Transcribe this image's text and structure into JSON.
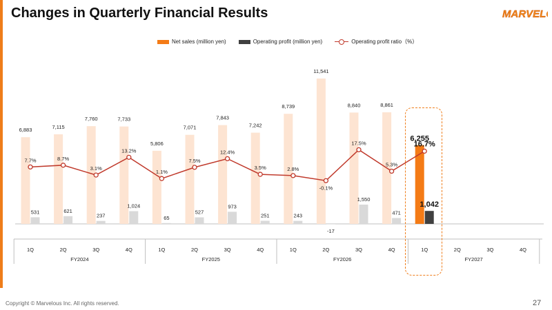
{
  "page": {
    "title": "Changes in Quarterly Financial Results",
    "logo_text": "MARVELOUS",
    "footer": "Copyright © Marvelous Inc. All rights reserved.",
    "page_number": "27"
  },
  "legend": {
    "net_sales": "Net sales (million yen)",
    "operating_profit": "Operating profit (million yen)",
    "ratio": "Operating profit ratio（%）"
  },
  "colors": {
    "accent": "#ef7d1a",
    "net_sales_past": "#fde4d2",
    "net_sales_current": "#f47b16",
    "op_profit_past": "#d9d9d9",
    "op_profit_current": "#404040",
    "ratio_line": "#c0392b"
  },
  "chart_data": {
    "type": "bar",
    "title": "Changes in Quarterly Financial Results",
    "categories": [
      "1Q",
      "2Q",
      "3Q",
      "4Q",
      "1Q",
      "2Q",
      "3Q",
      "4Q",
      "1Q",
      "2Q",
      "3Q",
      "4Q",
      "1Q",
      "2Q",
      "3Q",
      "4Q"
    ],
    "groups": [
      {
        "label": "FY2024",
        "quarters": 4
      },
      {
        "label": "FY2025",
        "quarters": 4
      },
      {
        "label": "FY2026",
        "quarters": 4
      },
      {
        "label": "FY2027",
        "quarters": 4
      }
    ],
    "series": [
      {
        "name": "Net sales (million yen)",
        "kind": "bar",
        "values": [
          6883,
          7115,
          7760,
          7733,
          5806,
          7071,
          7843,
          7242,
          8739,
          11541,
          8840,
          8861,
          6255,
          null,
          null,
          null
        ],
        "labels": [
          "6,883",
          "7,115",
          "7,760",
          "7,733",
          "5,806",
          "7,071",
          "7,843",
          "7,242",
          "8,739",
          "11,541",
          "8,840",
          "8,861",
          "6,255",
          "",
          "",
          ""
        ]
      },
      {
        "name": "Operating profit (million yen)",
        "kind": "bar",
        "values": [
          531,
          621,
          237,
          1024,
          65,
          527,
          973,
          251,
          243,
          -17,
          1550,
          471,
          1042,
          null,
          null,
          null
        ],
        "labels": [
          "531",
          "621",
          "237",
          "1,024",
          "65",
          "527",
          "973",
          "251",
          "243",
          "-17",
          "1,550",
          "471",
          "1,042",
          "",
          "",
          ""
        ]
      },
      {
        "name": "Operating profit ratio（%）",
        "kind": "line",
        "values": [
          7.7,
          8.7,
          3.1,
          13.2,
          1.1,
          7.5,
          12.4,
          3.5,
          2.8,
          -0.1,
          17.5,
          5.3,
          16.7,
          null,
          null,
          null
        ],
        "labels": [
          "7.7%",
          "8.7%",
          "3.1%",
          "13.2%",
          "1.1%",
          "7.5%",
          "12.4%",
          "3.5%",
          "2.8%",
          "-0.1%",
          "17.5%",
          "5.3%",
          "16.7%",
          "",
          "",
          ""
        ]
      }
    ],
    "highlight_index": 12,
    "legend_position": "top",
    "grid": false
  }
}
